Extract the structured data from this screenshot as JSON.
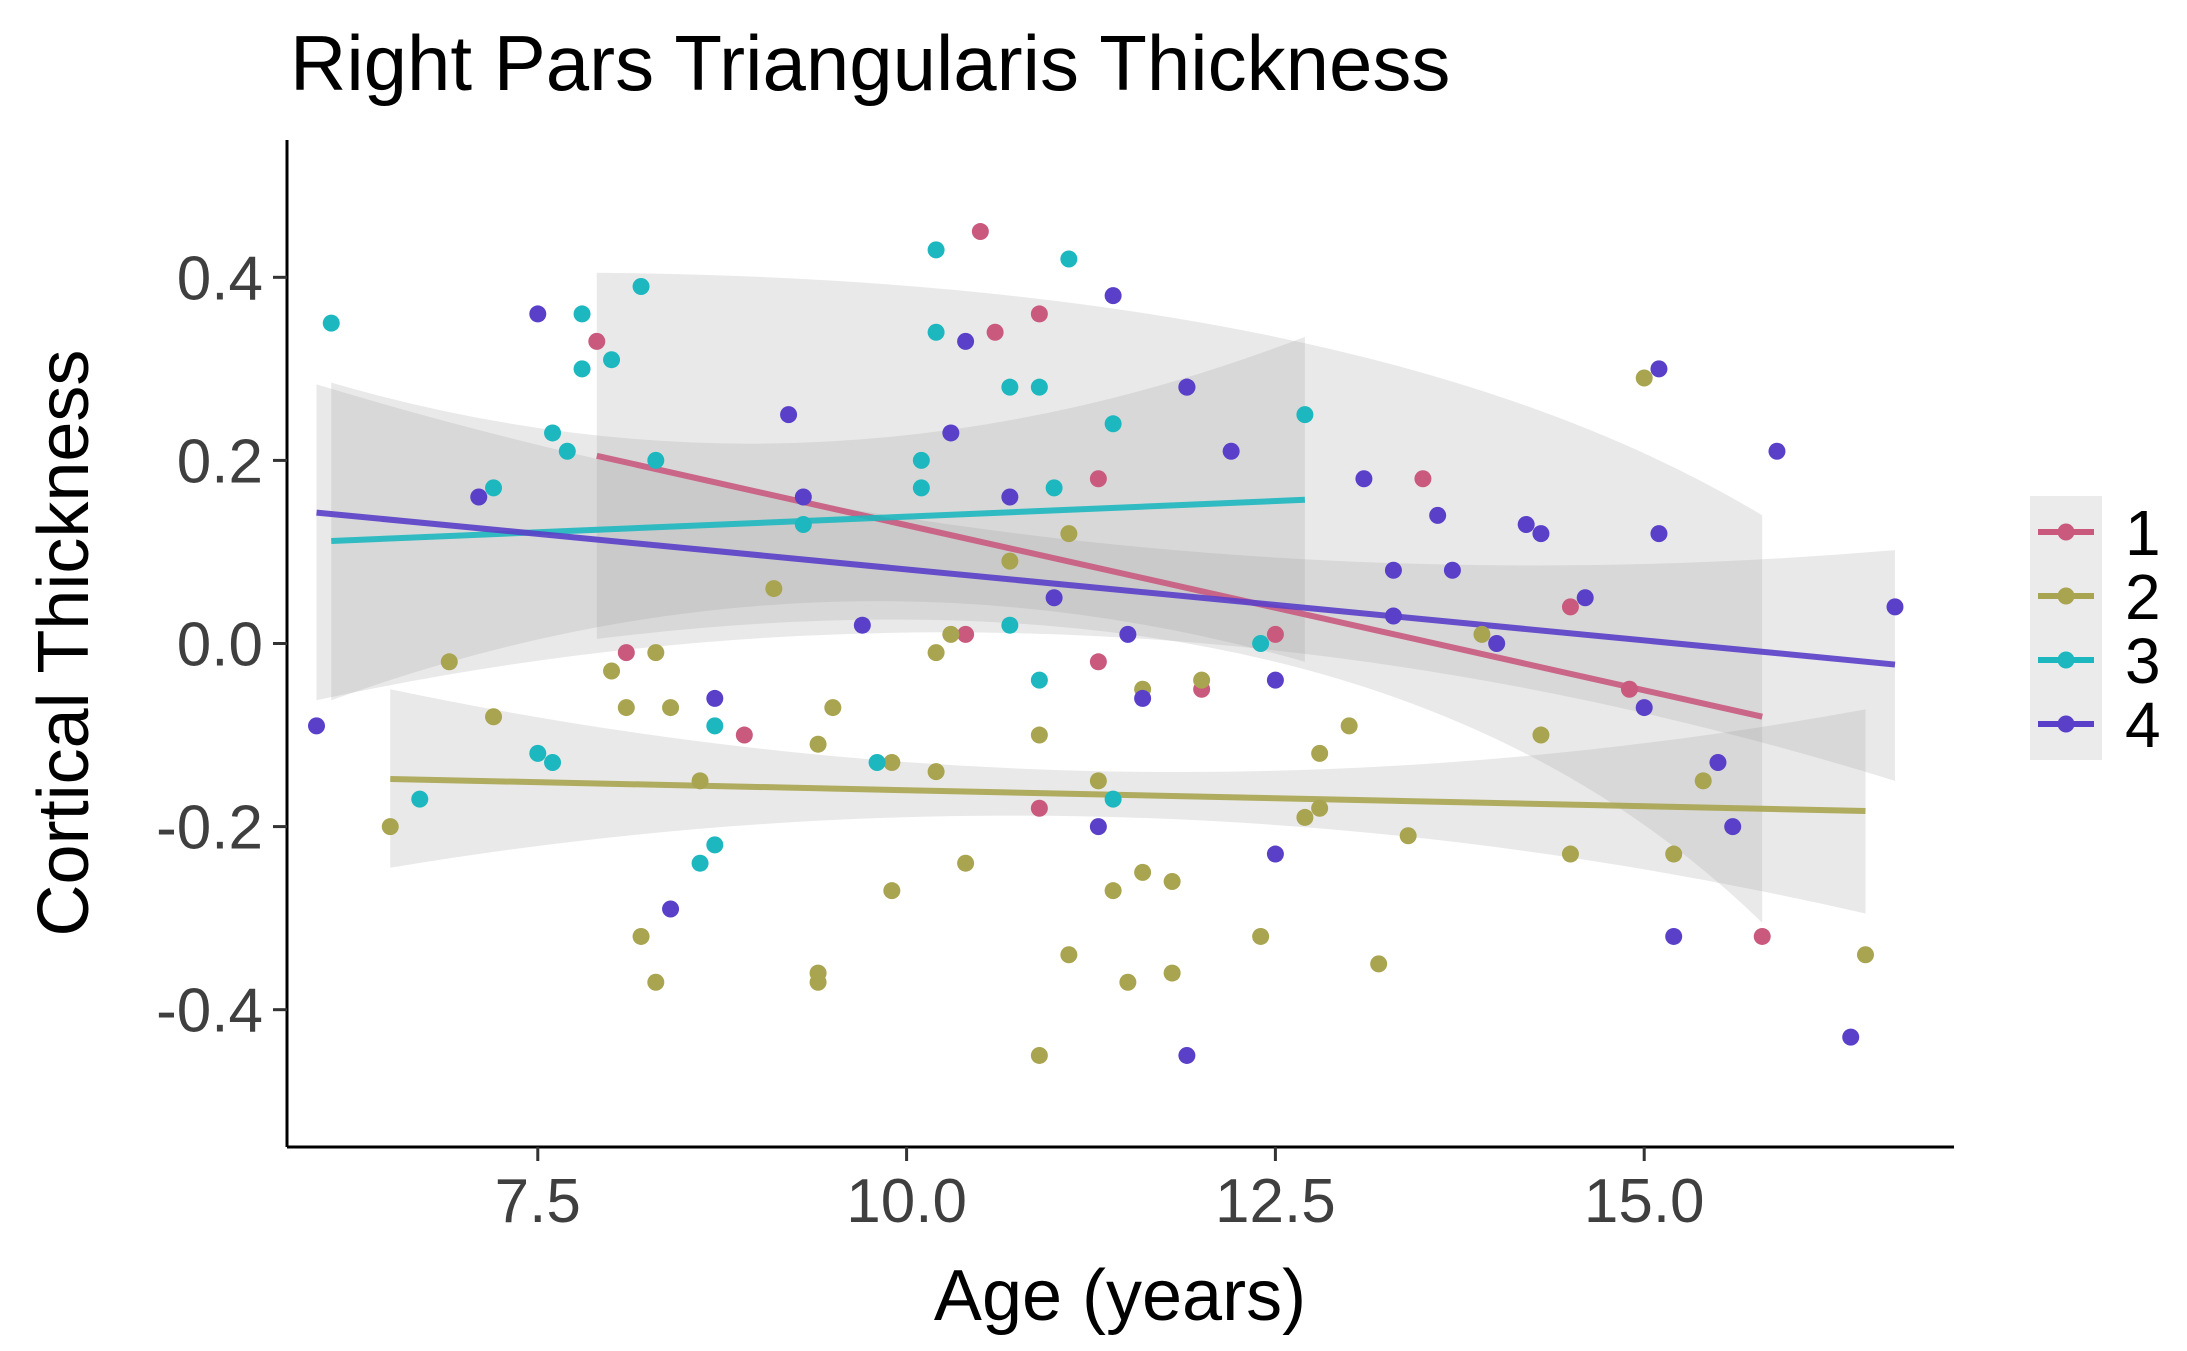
{
  "chart_data": {
    "type": "scatter",
    "title": "Right Pars Triangularis Thickness",
    "xlabel": "Age (years)",
    "ylabel": "Cortical Thickness",
    "xlim": [
      5.8,
      17.1
    ],
    "ylim": [
      -0.55,
      0.55
    ],
    "x_ticks": [
      7.5,
      10.0,
      12.5,
      15.0
    ],
    "x_tick_labels": [
      "7.5",
      "10.0",
      "12.5",
      "15.0"
    ],
    "y_ticks": [
      -0.4,
      -0.2,
      0.0,
      0.2,
      0.4
    ],
    "y_tick_labels": [
      "-0.4",
      "-0.2",
      "0.0",
      "0.2",
      "0.4"
    ],
    "grid": false,
    "legend_position": "right",
    "series": [
      {
        "name": "1",
        "color": "#c95a7e",
        "points": [
          [
            7.9,
            0.33
          ],
          [
            8.1,
            -0.01
          ],
          [
            8.9,
            -0.1
          ],
          [
            10.4,
            0.01
          ],
          [
            10.5,
            0.45
          ],
          [
            10.6,
            0.34
          ],
          [
            10.9,
            0.36
          ],
          [
            10.9,
            -0.18
          ],
          [
            11.3,
            0.18
          ],
          [
            11.3,
            -0.02
          ],
          [
            12.0,
            -0.05
          ],
          [
            12.5,
            0.01
          ],
          [
            13.5,
            0.18
          ],
          [
            14.5,
            0.04
          ],
          [
            14.9,
            -0.05
          ],
          [
            15.8,
            -0.32
          ]
        ],
        "trend": {
          "x": [
            7.9,
            15.8
          ],
          "y": [
            0.205,
            -0.08
          ]
        },
        "ci_band": {
          "x": [
            7.9,
            12.5,
            15.8
          ],
          "lower": [
            0.005,
            -0.02,
            -0.305
          ],
          "upper": [
            0.405,
            0.335,
            0.14
          ]
        }
      },
      {
        "name": "2",
        "color": "#a9a450",
        "points": [
          [
            6.5,
            -0.2
          ],
          [
            6.9,
            -0.02
          ],
          [
            7.2,
            -0.08
          ],
          [
            8.0,
            -0.03
          ],
          [
            8.1,
            -0.07
          ],
          [
            8.2,
            -0.32
          ],
          [
            8.3,
            -0.01
          ],
          [
            8.3,
            -0.37
          ],
          [
            8.4,
            -0.07
          ],
          [
            8.6,
            -0.15
          ],
          [
            9.1,
            0.06
          ],
          [
            9.4,
            -0.11
          ],
          [
            9.4,
            -0.37
          ],
          [
            9.4,
            -0.36
          ],
          [
            9.5,
            -0.07
          ],
          [
            9.9,
            -0.13
          ],
          [
            9.9,
            -0.27
          ],
          [
            10.2,
            -0.01
          ],
          [
            10.2,
            -0.14
          ],
          [
            10.3,
            0.01
          ],
          [
            10.4,
            -0.24
          ],
          [
            10.7,
            0.09
          ],
          [
            10.9,
            -0.1
          ],
          [
            10.9,
            -0.45
          ],
          [
            11.1,
            0.12
          ],
          [
            11.1,
            -0.34
          ],
          [
            11.3,
            -0.15
          ],
          [
            11.4,
            -0.27
          ],
          [
            11.5,
            -0.37
          ],
          [
            11.6,
            -0.05
          ],
          [
            11.6,
            -0.25
          ],
          [
            11.8,
            -0.36
          ],
          [
            11.8,
            -0.26
          ],
          [
            12.0,
            -0.04
          ],
          [
            12.4,
            -0.32
          ],
          [
            12.7,
            -0.19
          ],
          [
            12.8,
            -0.18
          ],
          [
            12.8,
            -0.12
          ],
          [
            13.0,
            -0.09
          ],
          [
            13.2,
            -0.35
          ],
          [
            13.4,
            -0.21
          ],
          [
            13.9,
            0.01
          ],
          [
            14.3,
            -0.1
          ],
          [
            14.5,
            -0.23
          ],
          [
            15.0,
            0.29
          ],
          [
            15.2,
            -0.23
          ],
          [
            15.4,
            -0.15
          ],
          [
            16.5,
            -0.34
          ]
        ],
        "trend": {
          "x": [
            6.5,
            16.5
          ],
          "y": [
            -0.148,
            -0.183
          ]
        },
        "ci_band": {
          "x": [
            6.5,
            11.5,
            16.5
          ],
          "lower": [
            -0.245,
            -0.19,
            -0.295
          ],
          "upper": [
            -0.05,
            -0.14,
            -0.072
          ]
        }
      },
      {
        "name": "3",
        "color": "#1db8bf",
        "points": [
          [
            6.1,
            0.35
          ],
          [
            6.7,
            -0.17
          ],
          [
            7.2,
            0.17
          ],
          [
            7.5,
            -0.12
          ],
          [
            7.6,
            -0.13
          ],
          [
            7.6,
            0.23
          ],
          [
            7.7,
            0.21
          ],
          [
            7.8,
            0.36
          ],
          [
            7.8,
            0.3
          ],
          [
            8.0,
            0.31
          ],
          [
            8.2,
            0.39
          ],
          [
            8.3,
            0.2
          ],
          [
            8.7,
            -0.09
          ],
          [
            8.7,
            -0.22
          ],
          [
            8.6,
            -0.24
          ],
          [
            9.3,
            0.13
          ],
          [
            9.8,
            -0.13
          ],
          [
            10.1,
            0.2
          ],
          [
            10.1,
            0.17
          ],
          [
            10.2,
            0.43
          ],
          [
            10.2,
            0.34
          ],
          [
            10.7,
            0.28
          ],
          [
            10.7,
            0.02
          ],
          [
            10.9,
            0.28
          ],
          [
            10.9,
            -0.04
          ],
          [
            11.0,
            0.17
          ],
          [
            11.1,
            0.42
          ],
          [
            11.4,
            0.24
          ],
          [
            11.4,
            -0.17
          ],
          [
            12.4,
            0.0
          ],
          [
            12.7,
            0.25
          ]
        ],
        "trend": {
          "x": [
            6.1,
            12.7
          ],
          "y": [
            0.112,
            0.157
          ]
        },
        "ci_band": {
          "x": [
            6.1,
            9.4,
            12.7
          ],
          "lower": [
            -0.062,
            0.045,
            -0.02
          ],
          "upper": [
            0.285,
            0.22,
            0.335
          ]
        }
      },
      {
        "name": "4",
        "color": "#5a3fc9",
        "points": [
          [
            6.0,
            -0.09
          ],
          [
            7.1,
            0.16
          ],
          [
            7.5,
            0.36
          ],
          [
            8.4,
            -0.29
          ],
          [
            8.7,
            -0.06
          ],
          [
            9.2,
            0.25
          ],
          [
            9.3,
            0.16
          ],
          [
            9.7,
            0.02
          ],
          [
            10.3,
            0.23
          ],
          [
            10.4,
            0.33
          ],
          [
            10.7,
            0.16
          ],
          [
            11.0,
            0.05
          ],
          [
            11.4,
            0.38
          ],
          [
            11.5,
            0.01
          ],
          [
            11.3,
            -0.2
          ],
          [
            11.6,
            -0.06
          ],
          [
            11.9,
            0.28
          ],
          [
            11.9,
            0.28
          ],
          [
            11.9,
            -0.45
          ],
          [
            12.2,
            0.21
          ],
          [
            12.5,
            -0.04
          ],
          [
            12.5,
            -0.23
          ],
          [
            13.1,
            0.18
          ],
          [
            13.3,
            0.03
          ],
          [
            13.3,
            0.08
          ],
          [
            13.6,
            0.14
          ],
          [
            13.7,
            0.08
          ],
          [
            14.0,
            0.0
          ],
          [
            14.2,
            0.13
          ],
          [
            14.3,
            0.12
          ],
          [
            14.6,
            0.05
          ],
          [
            15.0,
            -0.07
          ],
          [
            15.1,
            0.12
          ],
          [
            15.1,
            0.3
          ],
          [
            15.2,
            -0.32
          ],
          [
            15.5,
            -0.13
          ],
          [
            15.6,
            -0.2
          ],
          [
            15.9,
            0.21
          ],
          [
            16.4,
            -0.43
          ],
          [
            16.7,
            0.04
          ]
        ],
        "trend": {
          "x": [
            6.0,
            16.7
          ],
          "y": [
            0.143,
            -0.023
          ]
        },
        "ci_band": {
          "x": [
            6.0,
            11.3,
            16.7
          ],
          "lower": [
            -0.062,
            0.008,
            -0.15
          ],
          "upper": [
            0.283,
            0.11,
            0.102
          ]
        }
      }
    ]
  }
}
